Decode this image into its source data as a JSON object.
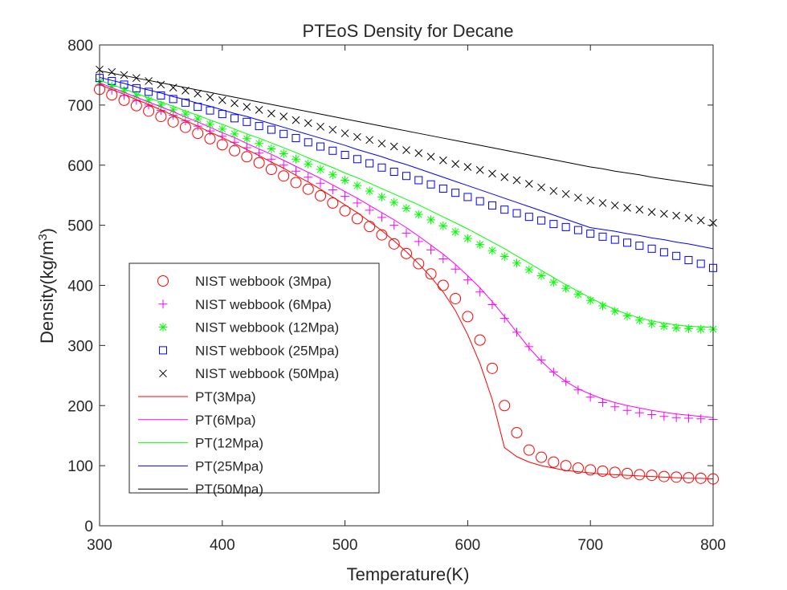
{
  "chart_data": {
    "type": "line",
    "title": "PTEoS Density for Decane",
    "xlabel": "Temperature(K)",
    "ylabel_main": "Density(kg/m",
    "ylabel_sup": "3",
    "ylabel_close": ")",
    "xlim": [
      300,
      800
    ],
    "ylim": [
      0,
      800
    ],
    "xticks": [
      300,
      400,
      500,
      600,
      700,
      800
    ],
    "yticks": [
      0,
      100,
      200,
      300,
      400,
      500,
      600,
      700,
      800
    ],
    "grid": false,
    "legend_position": "lower-left",
    "x": [
      300,
      310,
      320,
      330,
      340,
      350,
      360,
      370,
      380,
      390,
      400,
      410,
      420,
      430,
      440,
      450,
      460,
      470,
      480,
      490,
      500,
      510,
      520,
      530,
      540,
      550,
      560,
      570,
      580,
      590,
      600,
      610,
      620,
      630,
      640,
      650,
      660,
      670,
      680,
      690,
      700,
      710,
      720,
      730,
      740,
      750,
      760,
      770,
      780,
      790,
      800
    ],
    "series": [
      {
        "name": "NIST webbook (3Mpa)",
        "kind": "markers",
        "marker": "circle",
        "color": "#ff0000",
        "values": [
          726,
          717,
          708,
          699,
          690,
          681,
          672,
          663,
          653,
          644,
          634,
          624,
          614,
          604,
          593,
          582,
          571,
          560,
          549,
          537,
          524,
          511,
          498,
          484,
          469,
          453,
          436,
          419,
          400,
          378,
          348,
          309,
          262,
          200,
          155,
          126,
          114,
          106,
          100,
          96,
          93,
          91,
          89,
          87,
          85,
          84,
          82,
          81,
          80,
          79,
          78
        ]
      },
      {
        "name": "NIST webbook (6Mpa)",
        "kind": "markers",
        "marker": "plus",
        "color": "#ff00ff",
        "values": [
          733,
          725,
          716,
          708,
          700,
          691,
          683,
          674,
          665,
          657,
          648,
          638,
          629,
          620,
          610,
          600,
          590,
          580,
          570,
          559,
          548,
          537,
          525,
          513,
          500,
          487,
          473,
          459,
          444,
          427,
          409,
          389,
          368,
          345,
          322,
          298,
          276,
          256,
          240,
          226,
          214,
          205,
          198,
          192,
          188,
          185,
          182,
          180,
          179,
          178,
          177
        ]
      },
      {
        "name": "NIST webbook (12Mpa)",
        "kind": "markers",
        "marker": "asterisk",
        "color": "#00ff00",
        "values": [
          739,
          731,
          724,
          716,
          708,
          700,
          692,
          685,
          677,
          668,
          660,
          652,
          644,
          636,
          627,
          619,
          610,
          602,
          593,
          584,
          575,
          566,
          557,
          547,
          538,
          528,
          518,
          509,
          499,
          489,
          478,
          468,
          458,
          448,
          437,
          426,
          416,
          405,
          395,
          385,
          375,
          366,
          357,
          349,
          342,
          336,
          332,
          329,
          328,
          327,
          327
        ]
      },
      {
        "name": "NIST webbook (25Mpa)",
        "kind": "markers",
        "marker": "square",
        "color": "#0000ff",
        "values": [
          745,
          740,
          734,
          728,
          722,
          716,
          710,
          704,
          697,
          691,
          685,
          678,
          672,
          665,
          659,
          652,
          645,
          638,
          631,
          624,
          617,
          610,
          603,
          596,
          589,
          582,
          575,
          568,
          561,
          554,
          547,
          540,
          533,
          526,
          520,
          514,
          508,
          502,
          497,
          492,
          486,
          481,
          476,
          471,
          466,
          461,
          455,
          449,
          442,
          436,
          429
        ]
      },
      {
        "name": "NIST webbook (50Mpa)",
        "kind": "markers",
        "marker": "x",
        "color": "#000000",
        "values": [
          759,
          755,
          750,
          745,
          740,
          734,
          729,
          724,
          719,
          713,
          708,
          703,
          697,
          692,
          686,
          681,
          675,
          670,
          664,
          659,
          653,
          647,
          642,
          636,
          631,
          625,
          620,
          614,
          608,
          602,
          597,
          592,
          586,
          580,
          575,
          569,
          563,
          557,
          552,
          546,
          541,
          537,
          533,
          529,
          526,
          522,
          519,
          516,
          512,
          508,
          504
        ]
      },
      {
        "name": "PT(3Mpa)",
        "kind": "line",
        "color": "#ff0000",
        "values": [
          734,
          726,
          718,
          709,
          701,
          692,
          683,
          674,
          665,
          655,
          646,
          636,
          626,
          616,
          605,
          595,
          583,
          572,
          560,
          547,
          534,
          521,
          506,
          491,
          474,
          456,
          436,
          414,
          389,
          358,
          318,
          270,
          210,
          130,
          115,
          106,
          100,
          96,
          92,
          90,
          88,
          86,
          85,
          84,
          83,
          82,
          81,
          80,
          79,
          79,
          78
        ]
      },
      {
        "name": "PT(6Mpa)",
        "kind": "line",
        "color": "#ff00ff",
        "values": [
          737,
          729,
          721,
          713,
          705,
          697,
          689,
          680,
          672,
          663,
          654,
          646,
          636,
          627,
          618,
          608,
          598,
          588,
          578,
          567,
          556,
          545,
          533,
          521,
          509,
          496,
          482,
          467,
          452,
          435,
          416,
          396,
          373,
          348,
          322,
          296,
          274,
          255,
          240,
          228,
          219,
          211,
          205,
          200,
          196,
          192,
          189,
          186,
          184,
          182,
          180
        ]
      },
      {
        "name": "PT(12Mpa)",
        "kind": "line",
        "color": "#00ff00",
        "values": [
          741,
          734,
          727,
          719,
          712,
          705,
          698,
          690,
          683,
          675,
          668,
          660,
          652,
          645,
          637,
          629,
          621,
          612,
          604,
          596,
          587,
          579,
          570,
          561,
          552,
          543,
          534,
          524,
          514,
          504,
          494,
          483,
          472,
          461,
          449,
          437,
          425,
          413,
          401,
          390,
          379,
          369,
          360,
          352,
          346,
          341,
          337,
          334,
          332,
          331,
          330
        ]
      },
      {
        "name": "PT(25Mpa)",
        "kind": "line",
        "color": "#0000ff",
        "values": [
          746,
          741,
          736,
          730,
          725,
          720,
          714,
          709,
          703,
          698,
          692,
          686,
          681,
          675,
          669,
          663,
          657,
          651,
          645,
          639,
          633,
          626,
          620,
          614,
          607,
          601,
          594,
          587,
          580,
          573,
          566,
          559,
          552,
          545,
          538,
          531,
          524,
          517,
          510,
          503,
          496,
          493,
          490,
          486,
          483,
          479,
          476,
          472,
          469,
          465,
          461
        ]
      },
      {
        "name": "PT(50Mpa)",
        "kind": "line",
        "color": "#000000",
        "values": [
          757,
          753,
          749,
          745,
          741,
          737,
          733,
          729,
          725,
          721,
          717,
          713,
          709,
          705,
          701,
          697,
          693,
          689,
          685,
          681,
          677,
          673,
          669,
          665,
          661,
          657,
          653,
          649,
          645,
          641,
          637,
          633,
          629,
          625,
          621,
          617,
          613,
          609,
          605,
          601,
          597,
          594,
          590,
          587,
          584,
          580,
          577,
          574,
          571,
          568,
          565
        ]
      }
    ]
  }
}
